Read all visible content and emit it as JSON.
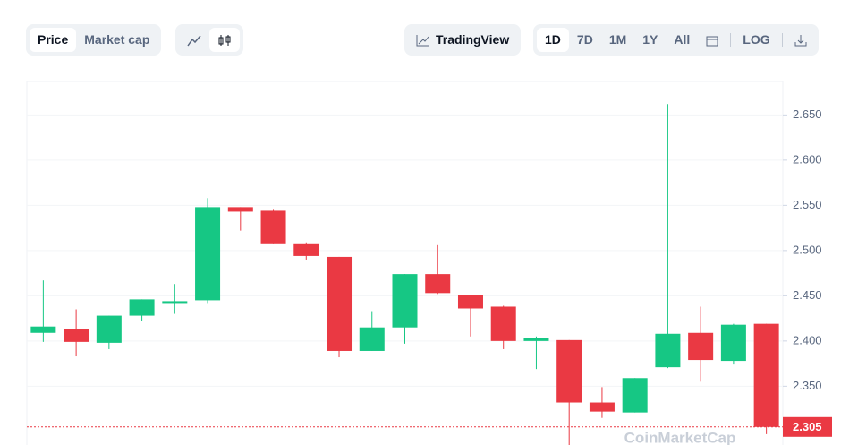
{
  "toolbar": {
    "type_tabs": [
      "Price",
      "Market cap"
    ],
    "tradingview": "TradingView",
    "ranges": [
      "1D",
      "7D",
      "1M",
      "1Y",
      "All"
    ],
    "log": "LOG"
  },
  "chart_data": {
    "type": "candlestick",
    "watermark": "CoinMarketCap",
    "series": [
      {
        "open": [
          2.409,
          2.413,
          2.398,
          2.428,
          2.442,
          2.445,
          2.548,
          2.544,
          2.508,
          2.493,
          2.389,
          2.415,
          2.474,
          2.451,
          2.438,
          2.4,
          2.401,
          2.332,
          2.321,
          2.371,
          2.409,
          2.378,
          2.419
        ],
        "high": [
          2.467,
          2.435,
          2.428,
          2.446,
          2.463,
          2.558,
          2.548,
          2.546,
          2.509,
          2.493,
          2.433,
          2.474,
          2.506,
          2.451,
          2.439,
          2.405,
          2.401,
          2.349,
          2.359,
          2.662,
          2.438,
          2.419,
          2.419
        ],
        "low": [
          2.399,
          2.383,
          2.391,
          2.422,
          2.43,
          2.442,
          2.522,
          2.508,
          2.49,
          2.382,
          2.389,
          2.397,
          2.452,
          2.405,
          2.391,
          2.369,
          2.28,
          2.315,
          2.321,
          2.37,
          2.355,
          2.374,
          2.297
        ],
        "close": [
          2.416,
          2.399,
          2.428,
          2.446,
          2.444,
          2.548,
          2.543,
          2.508,
          2.494,
          2.389,
          2.415,
          2.474,
          2.453,
          2.436,
          2.4,
          2.403,
          2.332,
          2.322,
          2.359,
          2.408,
          2.379,
          2.418,
          2.305
        ]
      }
    ],
    "up_color": "#16c784",
    "down_color": "#ea3943",
    "last_price": 2.305,
    "ylim": [
      2.285,
      2.687
    ],
    "yticks": [
      {
        "value": 2.35,
        "label": "2.350"
      },
      {
        "value": 2.4,
        "label": "2.400"
      },
      {
        "value": 2.45,
        "label": "2.450"
      },
      {
        "value": 2.5,
        "label": "2.500"
      },
      {
        "value": 2.55,
        "label": "2.550"
      },
      {
        "value": 2.6,
        "label": "2.600"
      },
      {
        "value": 2.65,
        "label": "2.650"
      }
    ],
    "grid": true
  }
}
